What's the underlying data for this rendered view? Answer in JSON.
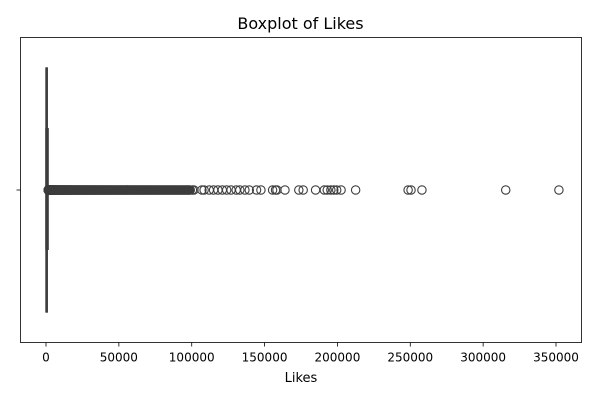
{
  "chart_data": {
    "type": "boxplot",
    "orientation": "horizontal",
    "title": "Boxplot of Likes",
    "xlabel": "Likes",
    "ylabel": "",
    "xlim": [
      -17500,
      367500
    ],
    "xticks": [
      0,
      50000,
      100000,
      150000,
      200000,
      250000,
      300000,
      350000
    ],
    "xtick_labels": [
      "0",
      "50000",
      "100000",
      "150000",
      "200000",
      "250000",
      "300000",
      "350000"
    ],
    "grid": false,
    "legend": "none",
    "box": {
      "whisker_low": 0,
      "q1": 40,
      "median": 150,
      "q3": 600,
      "whisker_high": 1450
    },
    "outlier_range": [
      1500,
      99000
    ],
    "outliers_count_dense": 280,
    "outliers_sparse": [
      100500,
      101500,
      107000,
      108500,
      112000,
      115000,
      118000,
      121000,
      124000,
      127000,
      130500,
      133000,
      136500,
      139500,
      144500,
      147500,
      155500,
      157500,
      158500,
      164000,
      173500,
      176500,
      185000,
      191000,
      193000,
      195500,
      197500,
      199500,
      202500,
      212500,
      248500,
      250500,
      258000,
      315500,
      352000
    ],
    "colors": {
      "box_fill": "#3b75af",
      "line": "#3d3d3d",
      "frame": "#000000"
    }
  }
}
